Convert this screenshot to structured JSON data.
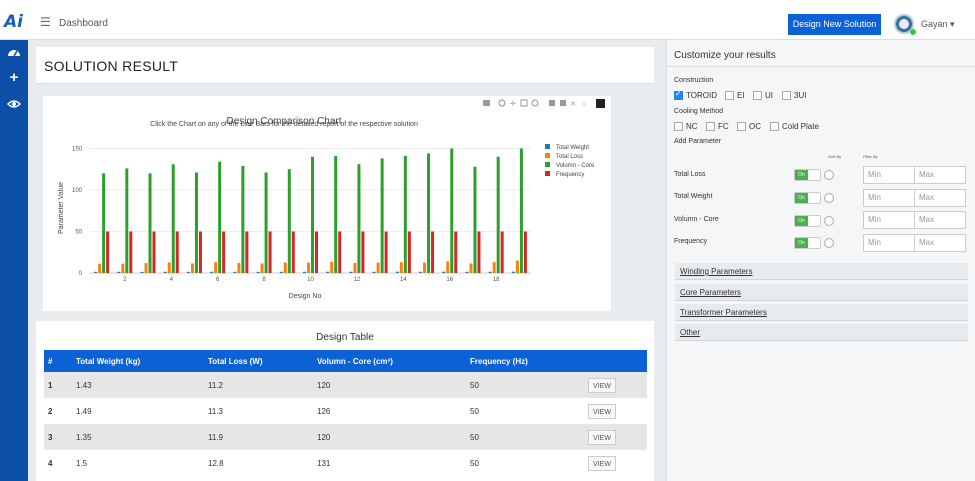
{
  "header": {
    "page_title": "Dashboard",
    "design_button": "Design New Solution",
    "user_name": "Gayan",
    "dropdown_caret": "▾",
    "logo_text": "Ai"
  },
  "sidebar": {
    "icons": [
      "dashboard-icon",
      "plus-icon",
      "eye-icon"
    ]
  },
  "main": {
    "result_title": "SOLUTION RESULT",
    "table_title": "Design Table",
    "table_headers": [
      "#",
      "Total Weight (kg)",
      "Total Loss (W)",
      "Volumn - Core (cm³)",
      "Frequency (Hz)",
      ""
    ],
    "rows": [
      {
        "num": "1",
        "weight": "1.43",
        "loss": "11.2",
        "volume": "120",
        "freq": "50",
        "action": "VIEW"
      },
      {
        "num": "2",
        "weight": "1.49",
        "loss": "11.3",
        "volume": "126",
        "freq": "50",
        "action": "VIEW"
      },
      {
        "num": "3",
        "weight": "1.35",
        "loss": "11.9",
        "volume": "120",
        "freq": "50",
        "action": "VIEW"
      },
      {
        "num": "4",
        "weight": "1.5",
        "loss": "12.8",
        "volume": "131",
        "freq": "50",
        "action": "VIEW"
      }
    ]
  },
  "chart_data": {
    "type": "bar",
    "title": "Design Comparison Chart",
    "subtitle": "Click the Chart on any of the Line Bars for the detailed report of the respective solution",
    "xlabel": "Design No",
    "ylabel": "Parameter Value",
    "ylim": [
      0,
      165
    ],
    "yticks": [
      0,
      50,
      100,
      150
    ],
    "xticks": [
      2,
      4,
      6,
      8,
      10,
      12,
      14,
      16,
      18
    ],
    "legend_position": "top-right",
    "categories": [
      1,
      2,
      3,
      4,
      5,
      6,
      7,
      8,
      9,
      10,
      11,
      12,
      13,
      14,
      15,
      16,
      17,
      18,
      19
    ],
    "series": [
      {
        "name": "Total Weight",
        "color": "#1f77b4",
        "values": [
          1.43,
          1.49,
          1.35,
          1.5,
          1.4,
          1.5,
          1.45,
          1.4,
          1.45,
          1.5,
          1.55,
          1.5,
          1.5,
          1.55,
          1.5,
          1.6,
          1.45,
          1.5,
          1.6
        ]
      },
      {
        "name": "Total Loss",
        "color": "#ff7f0e",
        "values": [
          11.2,
          11.3,
          11.9,
          12.8,
          11.5,
          13,
          12,
          11.5,
          12.5,
          12.5,
          13.5,
          12,
          12.5,
          13,
          12.5,
          14,
          11.5,
          13,
          15
        ]
      },
      {
        "name": "Volumn - Core",
        "color": "#2ca02c",
        "values": [
          120,
          126,
          120,
          131,
          121,
          134,
          129,
          121,
          125,
          140,
          141,
          131,
          138,
          141,
          144,
          150,
          128,
          140,
          150
        ]
      },
      {
        "name": "Frequency",
        "color": "#d62728",
        "values": [
          50,
          50,
          50,
          50,
          50,
          50,
          50,
          50,
          50,
          50,
          50,
          50,
          50,
          50,
          50,
          50,
          50,
          50,
          50
        ]
      }
    ]
  },
  "customize": {
    "title": "Customize your results",
    "construction_label": "Construction",
    "construction_options": [
      {
        "label": "TOROID",
        "checked": true
      },
      {
        "label": "EI",
        "checked": false
      },
      {
        "label": "UI",
        "checked": false
      },
      {
        "label": "3UI",
        "checked": false
      }
    ],
    "cooling_label": "Cooling Method",
    "cooling_options": [
      {
        "label": "NC",
        "checked": false
      },
      {
        "label": "FC",
        "checked": false
      },
      {
        "label": "OC",
        "checked": false
      },
      {
        "label": "Cold Plate",
        "checked": false
      }
    ],
    "add_parameter_label": "Add Parameter",
    "sort_by_label": "Sort By",
    "filter_by_label": "Filter By",
    "parameters": [
      {
        "name": "Total Loss",
        "toggle": "On",
        "min_placeholder": "Min",
        "max_placeholder": "Max"
      },
      {
        "name": "Total Weight",
        "toggle": "On",
        "min_placeholder": "Min",
        "max_placeholder": "Max"
      },
      {
        "name": "Volumn - Core",
        "toggle": "On",
        "min_placeholder": "Min",
        "max_placeholder": "Max"
      },
      {
        "name": "Frequency",
        "toggle": "On",
        "min_placeholder": "Min",
        "max_placeholder": "Max"
      }
    ],
    "accordions": [
      "Winding Parameters",
      "Core Parameters",
      "Transformer Parameters",
      "Other"
    ]
  }
}
